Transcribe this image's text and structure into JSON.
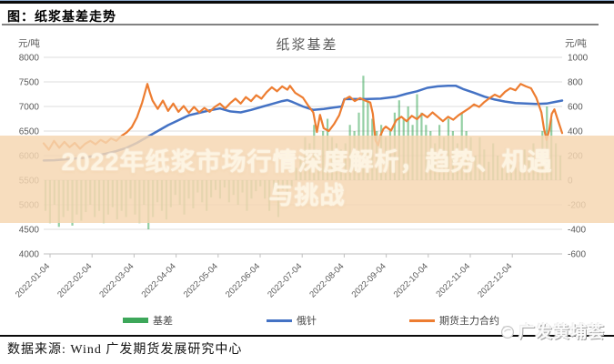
{
  "header": {
    "figure_label": "图：纸浆基差走势"
  },
  "overlay": {
    "line1": "2022年纸浆市场行情深度解析，趋势、机遇",
    "line2": "与挑战"
  },
  "footer": {
    "source": "数据来源: Wind 广发期货发展研究中心",
    "watermark": "广发黄埔荟"
  },
  "chart_data": {
    "type": "combo",
    "title": "纸浆基差",
    "left_axis": {
      "label": "元/吨",
      "range": [
        4000,
        8000
      ],
      "ticks": [
        8000,
        7500,
        7000,
        6500,
        6000,
        5500,
        5000,
        4500,
        4000
      ]
    },
    "right_axis": {
      "label": "元/吨",
      "range": [
        -600,
        1000
      ],
      "ticks": [
        1000,
        800,
        600,
        400,
        200,
        0,
        -200,
        -400,
        -600
      ]
    },
    "x_ticks": [
      "2022-01-04",
      "2022-02-04",
      "2022-03-04",
      "2022-04-04",
      "2022-05-04",
      "2022-06-04",
      "2022-07-04",
      "2022-08-04",
      "2022-09-04",
      "2022-10-04",
      "2022-11-04",
      "2022-12-04"
    ],
    "grid": true,
    "legend_position": "bottom",
    "series": [
      {
        "name": "基差",
        "type": "bar",
        "axis": "right",
        "color": "#3da75a",
        "values": [
          -250,
          -350,
          -200,
          -380,
          -300,
          -250,
          -370,
          -280,
          -330,
          -260,
          -200,
          -300,
          -250,
          -350,
          -280,
          -220,
          -320,
          -250,
          -300,
          -150,
          -280,
          -350,
          -200,
          -400,
          -300,
          -180,
          -250,
          -320,
          -220,
          -120,
          -200,
          -280,
          -150,
          -230,
          -100,
          -180,
          -250,
          -140,
          -80,
          -150,
          -60,
          -180,
          -120,
          -200,
          -100,
          -250,
          -150,
          -90,
          -50,
          -150,
          -250,
          -100,
          -300,
          -80,
          -150,
          -50,
          100,
          200,
          350,
          300,
          450,
          250,
          400,
          500,
          350,
          300,
          250,
          300,
          450,
          400,
          550,
          850,
          650,
          500,
          400,
          450,
          350,
          400,
          550,
          650,
          500,
          600,
          450,
          700,
          550,
          450,
          400,
          300,
          450,
          350,
          500,
          400,
          300,
          550,
          400,
          350,
          200,
          350,
          250,
          150,
          300,
          200,
          100,
          250,
          150,
          100,
          150,
          250,
          200,
          300,
          150,
          400,
          600,
          500,
          300,
          200
        ]
      },
      {
        "name": "俄针",
        "type": "line",
        "axis": "left",
        "color": "#4472c4",
        "points": [
          [
            0,
            5900
          ],
          [
            0.02,
            5905
          ],
          [
            0.04,
            5920
          ],
          [
            0.06,
            5940
          ],
          [
            0.08,
            5960
          ],
          [
            0.1,
            6000
          ],
          [
            0.12,
            6040
          ],
          [
            0.14,
            6090
          ],
          [
            0.16,
            6160
          ],
          [
            0.18,
            6260
          ],
          [
            0.2,
            6380
          ],
          [
            0.22,
            6500
          ],
          [
            0.24,
            6620
          ],
          [
            0.26,
            6720
          ],
          [
            0.28,
            6820
          ],
          [
            0.3,
            6870
          ],
          [
            0.32,
            6920
          ],
          [
            0.34,
            6960
          ],
          [
            0.36,
            6900
          ],
          [
            0.38,
            6880
          ],
          [
            0.4,
            6930
          ],
          [
            0.42,
            6990
          ],
          [
            0.44,
            7050
          ],
          [
            0.46,
            7110
          ],
          [
            0.47,
            7130
          ],
          [
            0.48,
            7090
          ],
          [
            0.5,
            7000
          ],
          [
            0.52,
            6930
          ],
          [
            0.54,
            6950
          ],
          [
            0.56,
            6980
          ],
          [
            0.575,
            7000
          ],
          [
            0.58,
            7150
          ],
          [
            0.62,
            7150
          ],
          [
            0.65,
            7160
          ],
          [
            0.68,
            7200
          ],
          [
            0.7,
            7260
          ],
          [
            0.72,
            7310
          ],
          [
            0.74,
            7380
          ],
          [
            0.76,
            7410
          ],
          [
            0.78,
            7420
          ],
          [
            0.795,
            7420
          ],
          [
            0.81,
            7350
          ],
          [
            0.83,
            7280
          ],
          [
            0.85,
            7200
          ],
          [
            0.87,
            7140
          ],
          [
            0.89,
            7100
          ],
          [
            0.91,
            7070
          ],
          [
            0.93,
            7060
          ],
          [
            0.95,
            7050
          ],
          [
            0.97,
            7060
          ],
          [
            0.985,
            7090
          ],
          [
            1,
            7120
          ]
        ]
      },
      {
        "name": "期货主力合约",
        "type": "line",
        "axis": "left",
        "color": "#ed7d31",
        "points": [
          [
            0,
            6250
          ],
          [
            0.01,
            6120
          ],
          [
            0.02,
            6300
          ],
          [
            0.03,
            6160
          ],
          [
            0.04,
            6280
          ],
          [
            0.05,
            6170
          ],
          [
            0.06,
            6260
          ],
          [
            0.07,
            6140
          ],
          [
            0.08,
            6240
          ],
          [
            0.09,
            6300
          ],
          [
            0.1,
            6230
          ],
          [
            0.11,
            6320
          ],
          [
            0.12,
            6260
          ],
          [
            0.13,
            6350
          ],
          [
            0.14,
            6300
          ],
          [
            0.15,
            6400
          ],
          [
            0.16,
            6470
          ],
          [
            0.17,
            6580
          ],
          [
            0.18,
            6780
          ],
          [
            0.19,
            7080
          ],
          [
            0.2,
            7460
          ],
          [
            0.205,
            7280
          ],
          [
            0.21,
            7120
          ],
          [
            0.22,
            6950
          ],
          [
            0.23,
            7120
          ],
          [
            0.24,
            6910
          ],
          [
            0.25,
            7060
          ],
          [
            0.26,
            6890
          ],
          [
            0.27,
            7010
          ],
          [
            0.28,
            6870
          ],
          [
            0.29,
            6990
          ],
          [
            0.3,
            6880
          ],
          [
            0.31,
            6970
          ],
          [
            0.32,
            6890
          ],
          [
            0.33,
            6990
          ],
          [
            0.34,
            7060
          ],
          [
            0.35,
            6960
          ],
          [
            0.36,
            7070
          ],
          [
            0.37,
            7160
          ],
          [
            0.38,
            7060
          ],
          [
            0.39,
            7190
          ],
          [
            0.4,
            7110
          ],
          [
            0.41,
            7230
          ],
          [
            0.42,
            7160
          ],
          [
            0.43,
            7290
          ],
          [
            0.44,
            7390
          ],
          [
            0.45,
            7310
          ],
          [
            0.46,
            7410
          ],
          [
            0.47,
            7340
          ],
          [
            0.475,
            7420
          ],
          [
            0.485,
            7280
          ],
          [
            0.5,
            7180
          ],
          [
            0.51,
            7020
          ],
          [
            0.52,
            6880
          ],
          [
            0.527,
            6480
          ],
          [
            0.533,
            6830
          ],
          [
            0.54,
            6560
          ],
          [
            0.55,
            6500
          ],
          [
            0.56,
            6640
          ],
          [
            0.57,
            6820
          ],
          [
            0.58,
            7140
          ],
          [
            0.59,
            7200
          ],
          [
            0.6,
            7110
          ],
          [
            0.61,
            7170
          ],
          [
            0.62,
            7120
          ],
          [
            0.63,
            7080
          ],
          [
            0.635,
            6850
          ],
          [
            0.64,
            6310
          ],
          [
            0.645,
            6210
          ],
          [
            0.65,
            6420
          ],
          [
            0.655,
            6540
          ],
          [
            0.66,
            6590
          ],
          [
            0.67,
            6510
          ],
          [
            0.68,
            6720
          ],
          [
            0.69,
            6790
          ],
          [
            0.7,
            6700
          ],
          [
            0.71,
            6810
          ],
          [
            0.72,
            6740
          ],
          [
            0.73,
            6850
          ],
          [
            0.74,
            6780
          ],
          [
            0.75,
            6880
          ],
          [
            0.76,
            6790
          ],
          [
            0.77,
            6700
          ],
          [
            0.78,
            6790
          ],
          [
            0.79,
            6730
          ],
          [
            0.8,
            6820
          ],
          [
            0.81,
            6890
          ],
          [
            0.82,
            6960
          ],
          [
            0.83,
            7040
          ],
          [
            0.84,
            6990
          ],
          [
            0.85,
            7090
          ],
          [
            0.86,
            7170
          ],
          [
            0.87,
            7240
          ],
          [
            0.88,
            7190
          ],
          [
            0.89,
            7300
          ],
          [
            0.9,
            7370
          ],
          [
            0.91,
            7330
          ],
          [
            0.92,
            7460
          ],
          [
            0.93,
            7410
          ],
          [
            0.94,
            7370
          ],
          [
            0.95,
            7180
          ],
          [
            0.96,
            6880
          ],
          [
            0.965,
            6550
          ],
          [
            0.97,
            6320
          ],
          [
            0.975,
            6520
          ],
          [
            0.98,
            6850
          ],
          [
            0.985,
            6940
          ],
          [
            0.99,
            6780
          ],
          [
            1,
            6460
          ]
        ]
      }
    ]
  }
}
